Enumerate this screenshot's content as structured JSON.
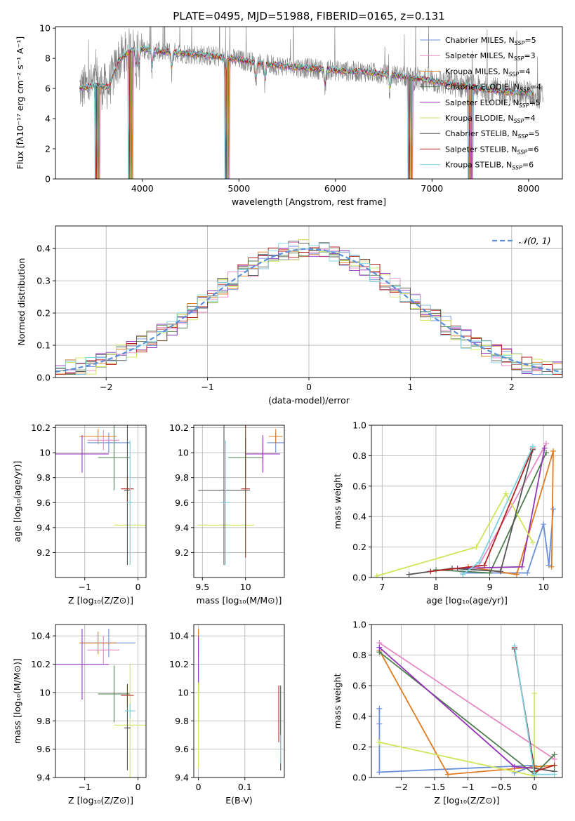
{
  "figure_title": "PLATE=0495, MJD=51988, FIBERID=0165, z=0.131",
  "colors": {
    "chabrier_miles": "#6a8fd9",
    "salpeter_miles": "#e589c4",
    "kroupa_miles": "#e07b1f",
    "chabrier_elodie": "#4e7d4e",
    "salpeter_elodie": "#9534b8",
    "kroupa_elodie": "#cfe65a",
    "chabrier_stelib": "#555555",
    "salpeter_stelib": "#b52020",
    "kroupa_stelib": "#7dd3e0",
    "normal": "#5b8fd9",
    "observed": "#808080"
  },
  "chart_data": [
    {
      "id": "spectrum",
      "type": "line",
      "title": "PLATE=0495, MJD=51988, FIBERID=0165, z=0.131",
      "xlabel": "wavelength [Angstrom, rest frame]",
      "ylabel": "Flux [fλ10⁻¹⁷ erg cm⁻² s⁻¹ A⁻¹]",
      "xlim": [
        3100,
        8350
      ],
      "ylim": [
        0,
        10.1
      ],
      "xticks": [
        4000,
        5000,
        6000,
        7000,
        8000
      ],
      "yticks": [
        0,
        2,
        4,
        6,
        8,
        10
      ],
      "grid": false,
      "legend_position": "right",
      "legend": [
        {
          "base": "Chabrier MILES, N",
          "sub": "SSP",
          "tail": "=5"
        },
        {
          "base": "Salpeter MILES, N",
          "sub": "SSP",
          "tail": "=3"
        },
        {
          "base": "Kroupa MILES, N",
          "sub": "SSP",
          "tail": "=4"
        },
        {
          "base": "Chabrier ELODIE, N",
          "sub": "SSP",
          "tail": "=4"
        },
        {
          "base": "Salpeter ELODIE, N",
          "sub": "SSP",
          "tail": "=5"
        },
        {
          "base": "Kroupa ELODIE, N",
          "sub": "SSP",
          "tail": "=4"
        },
        {
          "base": "Chabrier STELIB, N",
          "sub": "SSP",
          "tail": "=5"
        },
        {
          "base": "Salpeter STELIB, N",
          "sub": "SSP",
          "tail": "=6"
        },
        {
          "base": "Kroupa STELIB, N",
          "sub": "SSP",
          "tail": "=6"
        }
      ],
      "continuum_knots": {
        "x": [
          3350,
          3500,
          3650,
          3750,
          3850,
          3950,
          4100,
          4300,
          4500,
          4800,
          5000,
          5300,
          5600,
          6000,
          6300,
          6600,
          6800,
          7000,
          7300,
          7500,
          7700,
          8000,
          8100
        ],
        "y": [
          6.0,
          6.2,
          6.1,
          7.8,
          8.4,
          8.7,
          8.5,
          8.4,
          8.3,
          8.1,
          7.9,
          7.6,
          7.4,
          7.2,
          7.1,
          6.9,
          6.7,
          6.5,
          6.2,
          6.0,
          5.8,
          5.7,
          5.5
        ]
      },
      "absorption_lines": [
        3934,
        3968,
        4102,
        4305,
        4861,
        5175,
        5270,
        5892,
        6563
      ],
      "dropouts": [
        3560,
        3905,
        4905,
        6800,
        7420
      ]
    },
    {
      "id": "residuals",
      "type": "histogram",
      "xlabel": "(data-model)/error",
      "ylabel": "Normed distribution",
      "xlim": [
        -2.5,
        2.5
      ],
      "ylim": [
        0,
        0.47
      ],
      "xticks": [
        -2,
        -1,
        0,
        1,
        2
      ],
      "yticks": [
        0.0,
        0.1,
        0.2,
        0.3,
        0.4
      ],
      "grid": true,
      "bin_width": 0.1,
      "legend": [
        {
          "label": "𝒩(0, 1)",
          "style": "dashed"
        }
      ],
      "normal_curve": {
        "mean": 0,
        "sigma": 1
      }
    },
    {
      "id": "age_vs_Z",
      "type": "scatter",
      "xlabel": "Z [log₁₀(Z/Z⊙)]",
      "ylabel": "age  [log₁₀(age/yr)]",
      "xlim": [
        -1.55,
        0.15
      ],
      "ylim": [
        9.0,
        10.22
      ],
      "xticks": [
        -1,
        0
      ],
      "yticks": [
        9.2,
        9.4,
        9.6,
        9.8,
        10.0,
        10.2
      ],
      "grid": true,
      "points": [
        {
          "model": "chabrier_miles",
          "x": -0.55,
          "y": 10.08,
          "xerr": 0.4,
          "yerr": 0.08
        },
        {
          "model": "salpeter_miles",
          "x": -0.65,
          "y": 10.1,
          "xerr": 0.3,
          "yerr": 0.08
        },
        {
          "model": "kroupa_miles",
          "x": -0.75,
          "y": 10.13,
          "xerr": 0.35,
          "yerr": 0.06
        },
        {
          "model": "chabrier_elodie",
          "x": -0.45,
          "y": 9.96,
          "xerr": 0.3,
          "yerr": 0.26
        },
        {
          "model": "salpeter_elodie",
          "x": -1.05,
          "y": 9.99,
          "xerr": 0.5,
          "yerr": 0.15
        },
        {
          "model": "kroupa_elodie",
          "x": -0.15,
          "y": 9.42,
          "xerr": 0.3,
          "yerr": 0.32
        },
        {
          "model": "chabrier_stelib",
          "x": -0.2,
          "y": 9.7,
          "xerr": 0.06,
          "yerr": 0.6
        },
        {
          "model": "salpeter_stelib",
          "x": -0.2,
          "y": 9.71,
          "xerr": 0.12,
          "yerr": 0.1
        },
        {
          "model": "kroupa_stelib",
          "x": -0.15,
          "y": 9.6,
          "xerr": 0.05,
          "yerr": 0.5
        }
      ]
    },
    {
      "id": "age_vs_mass",
      "type": "scatter",
      "xlabel": "mass [log₁₀(M/M⊙)]",
      "ylabel": "",
      "xlim": [
        9.4,
        10.45
      ],
      "ylim": [
        9.0,
        10.22
      ],
      "xticks": [
        9.5,
        10.0
      ],
      "yticks": [
        9.2,
        9.4,
        9.6,
        9.8,
        10.0,
        10.2
      ],
      "grid": true,
      "points": [
        {
          "model": "chabrier_miles",
          "x": 10.35,
          "y": 10.08,
          "xerr": 0.1,
          "yerr": 0.08
        },
        {
          "model": "salpeter_miles",
          "x": 10.2,
          "y": 9.99,
          "xerr": 0.15,
          "yerr": 0.08
        },
        {
          "model": "kroupa_miles",
          "x": 10.35,
          "y": 10.13,
          "xerr": 0.08,
          "yerr": 0.06
        },
        {
          "model": "chabrier_elodie",
          "x": 10.0,
          "y": 9.96,
          "xerr": 0.2,
          "yerr": 0.16
        },
        {
          "model": "salpeter_elodie",
          "x": 10.2,
          "y": 9.99,
          "xerr": 0.2,
          "yerr": 0.15
        },
        {
          "model": "kroupa_elodie",
          "x": 9.77,
          "y": 9.42,
          "xerr": 0.33,
          "yerr": 0.32
        },
        {
          "model": "chabrier_stelib",
          "x": 9.75,
          "y": 9.7,
          "xerr": 0.3,
          "yerr": 0.6
        },
        {
          "model": "salpeter_stelib",
          "x": 10.0,
          "y": 9.71,
          "xerr": 0.05,
          "yerr": 0.55
        },
        {
          "model": "kroupa_stelib",
          "x": 9.77,
          "y": 9.6,
          "xerr": 0.05,
          "yerr": 0.5
        }
      ]
    },
    {
      "id": "weight_vs_age",
      "type": "line",
      "xlabel": "age  [log₁₀(age/yr)]",
      "ylabel": "mass weight",
      "xlim": [
        6.8,
        10.35
      ],
      "ylim": [
        0,
        1
      ],
      "xticks": [
        7,
        8,
        9,
        10
      ],
      "yticks": [
        0.0,
        0.2,
        0.4,
        0.6,
        0.8,
        1.0
      ],
      "grid": true,
      "series": [
        {
          "model": "chabrier_miles",
          "x": [
            8.5,
            9.7,
            10.0,
            10.1,
            10.18
          ],
          "y": [
            0.03,
            0.03,
            0.35,
            0.08,
            0.45
          ]
        },
        {
          "model": "salpeter_miles",
          "x": [
            8.8,
            10.05
          ],
          "y": [
            0.08,
            0.88
          ]
        },
        {
          "model": "kroupa_miles",
          "x": [
            8.6,
            9.5,
            10.18,
            10.15
          ],
          "y": [
            0.07,
            0.02,
            0.83,
            0.07
          ]
        },
        {
          "model": "chabrier_elodie",
          "x": [
            8.0,
            9.0,
            10.05
          ],
          "y": [
            0.05,
            0.03,
            0.82
          ]
        },
        {
          "model": "salpeter_elodie",
          "x": [
            8.4,
            9.6,
            10.02
          ],
          "y": [
            0.06,
            0.07,
            0.85
          ]
        },
        {
          "model": "kroupa_elodie",
          "x": [
            6.9,
            8.75,
            9.3,
            9.8
          ],
          "y": [
            0.01,
            0.2,
            0.55,
            0.23
          ]
        },
        {
          "model": "chabrier_stelib",
          "x": [
            7.5,
            8.3,
            9.2,
            9.8
          ],
          "y": [
            0.02,
            0.06,
            0.04,
            0.84
          ]
        },
        {
          "model": "salpeter_stelib",
          "x": [
            7.9,
            8.9,
            9.8
          ],
          "y": [
            0.04,
            0.08,
            0.85
          ]
        },
        {
          "model": "kroupa_stelib",
          "x": [
            8.5,
            8.8,
            9.8
          ],
          "y": [
            0.02,
            0.1,
            0.86
          ]
        }
      ]
    },
    {
      "id": "mass_vs_Z",
      "type": "scatter",
      "xlabel": "Z [log₁₀(Z/Z⊙)]",
      "ylabel": "mass [log₁₀(M/M⊙)]",
      "xlim": [
        -1.55,
        0.15
      ],
      "ylim": [
        9.4,
        10.48
      ],
      "xticks": [
        -1,
        0
      ],
      "yticks": [
        9.4,
        9.6,
        9.8,
        10.0,
        10.2,
        10.4
      ],
      "grid": true,
      "points": [
        {
          "model": "chabrier_miles",
          "x": -0.55,
          "y": 10.35,
          "xerr": 0.5,
          "yerr": 0.1
        },
        {
          "model": "salpeter_miles",
          "x": -0.65,
          "y": 10.3,
          "xerr": 0.3,
          "yerr": 0.1
        },
        {
          "model": "kroupa_miles",
          "x": -0.75,
          "y": 10.35,
          "xerr": 0.35,
          "yerr": 0.08
        },
        {
          "model": "chabrier_elodie",
          "x": -0.45,
          "y": 9.99,
          "xerr": 0.3,
          "yerr": 0.2
        },
        {
          "model": "salpeter_elodie",
          "x": -1.05,
          "y": 10.2,
          "xerr": 0.5,
          "yerr": 0.25
        },
        {
          "model": "kroupa_elodie",
          "x": -0.15,
          "y": 9.77,
          "xerr": 0.3,
          "yerr": 0.43
        },
        {
          "model": "chabrier_stelib",
          "x": -0.2,
          "y": 9.75,
          "xerr": 0.06,
          "yerr": 0.3
        },
        {
          "model": "salpeter_stelib",
          "x": -0.2,
          "y": 9.98,
          "xerr": 0.12,
          "yerr": 0.08
        },
        {
          "model": "kroupa_stelib",
          "x": -0.15,
          "y": 9.87,
          "xerr": 0.1,
          "yerr": 0.05
        }
      ]
    },
    {
      "id": "mass_vs_ebv",
      "type": "scatter",
      "xlabel": "E(B-V)",
      "ylabel": "",
      "xlim": [
        -0.01,
        0.185
      ],
      "ylim": [
        9.4,
        10.48
      ],
      "xticks": [
        0.0,
        0.1
      ],
      "yticks": [
        9.4,
        9.6,
        9.8,
        10.0,
        10.2,
        10.4
      ],
      "grid": true,
      "points": [
        {
          "model": "chabrier_miles",
          "x": 0.0,
          "y": 10.35,
          "xerr": 0,
          "yerr": 0.08
        },
        {
          "model": "salpeter_miles",
          "x": 0.0,
          "y": 10.3,
          "xerr": 0,
          "yerr": 0.12
        },
        {
          "model": "kroupa_miles",
          "x": 0.0,
          "y": 10.35,
          "xerr": 0,
          "yerr": 0.1
        },
        {
          "model": "chabrier_elodie",
          "x": 0.0,
          "y": 9.99,
          "xerr": 0,
          "yerr": 0.2
        },
        {
          "model": "salpeter_elodie",
          "x": 0.0,
          "y": 10.2,
          "xerr": 0,
          "yerr": 0.2
        },
        {
          "model": "kroupa_elodie",
          "x": 0.0,
          "y": 9.77,
          "xerr": 0,
          "yerr": 0.3
        },
        {
          "model": "chabrier_stelib",
          "x": 0.177,
          "y": 9.75,
          "xerr": 0,
          "yerr": 0.3
        },
        {
          "model": "salpeter_stelib",
          "x": 0.173,
          "y": 9.85,
          "xerr": 0,
          "yerr": 0.2
        },
        {
          "model": "kroupa_stelib",
          "x": 0.177,
          "y": 9.6,
          "xerr": 0,
          "yerr": 0.1
        }
      ]
    },
    {
      "id": "weight_vs_Z",
      "type": "line",
      "xlabel": "Z [log₁₀(Z/Z⊙)]",
      "ylabel": "mass weight",
      "xlim": [
        -2.45,
        0.42
      ],
      "ylim": [
        0,
        1
      ],
      "xticks": [
        -2.0,
        -1.5,
        -1.0,
        -0.5,
        0.0
      ],
      "yticks": [
        0.0,
        0.2,
        0.4,
        0.6,
        0.8,
        1.0
      ],
      "grid": true,
      "series": [
        {
          "model": "chabrier_miles",
          "x": [
            -2.33,
            -2.33,
            -2.33,
            0.0,
            -0.3
          ],
          "y": [
            0.45,
            0.35,
            0.035,
            0.08,
            0.03
          ]
        },
        {
          "model": "salpeter_miles",
          "x": [
            -2.33,
            0.3
          ],
          "y": [
            0.88,
            0.12
          ]
        },
        {
          "model": "kroupa_miles",
          "x": [
            -2.33,
            -1.3,
            0.3,
            0.0
          ],
          "y": [
            0.83,
            0.02,
            0.08,
            0.07
          ]
        },
        {
          "model": "chabrier_elodie",
          "x": [
            -2.33,
            0.0,
            0.3
          ],
          "y": [
            0.82,
            0.02,
            0.15
          ]
        },
        {
          "model": "salpeter_elodie",
          "x": [
            -2.33,
            -0.3,
            0.0
          ],
          "y": [
            0.85,
            0.07,
            0.06
          ]
        },
        {
          "model": "kroupa_elodie",
          "x": [
            -2.33,
            0.0,
            0.0
          ],
          "y": [
            0.23,
            0.01,
            0.55
          ]
        },
        {
          "model": "chabrier_stelib",
          "x": [
            -0.3,
            0.0,
            0.3
          ],
          "y": [
            0.84,
            0.06,
            0.04
          ]
        },
        {
          "model": "salpeter_stelib",
          "x": [
            -0.3,
            0.0,
            0.3
          ],
          "y": [
            0.85,
            0.04,
            0.08
          ]
        },
        {
          "model": "kroupa_stelib",
          "x": [
            -0.3,
            0.0,
            0.3
          ],
          "y": [
            0.86,
            0.02,
            0.02
          ]
        }
      ]
    }
  ]
}
